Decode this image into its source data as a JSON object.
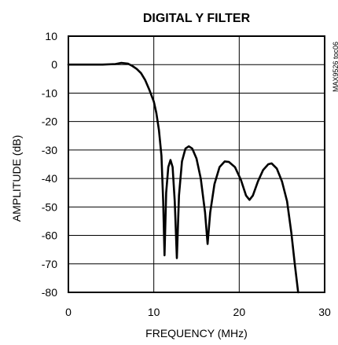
{
  "chart_data": {
    "type": "line",
    "title": "DIGITAL Y FILTER",
    "xlabel": "FREQUENCY (MHz)",
    "ylabel": "AMPLITUDE (dB)",
    "side_note": "MAX9526 toc06",
    "xlim": [
      0,
      30
    ],
    "ylim": [
      -80,
      10
    ],
    "x_ticks": [
      0,
      10,
      20,
      30
    ],
    "y_ticks": [
      10,
      0,
      -10,
      -20,
      -30,
      -40,
      -50,
      -60,
      -70,
      -80
    ],
    "grid": true,
    "series": [
      {
        "points": [
          [
            0,
            0
          ],
          [
            2,
            0
          ],
          [
            4,
            0
          ],
          [
            5.5,
            0.2
          ],
          [
            6.2,
            0.6
          ],
          [
            7,
            0.3
          ],
          [
            7.5,
            -0.5
          ],
          [
            8,
            -1.5
          ],
          [
            8.5,
            -3
          ],
          [
            9,
            -5.5
          ],
          [
            9.5,
            -9
          ],
          [
            10,
            -13
          ],
          [
            10.3,
            -17
          ],
          [
            10.6,
            -23
          ],
          [
            10.9,
            -32
          ],
          [
            11.1,
            -48
          ],
          [
            11.25,
            -67
          ],
          [
            11.45,
            -45
          ],
          [
            11.7,
            -36
          ],
          [
            11.95,
            -33.5
          ],
          [
            12.2,
            -36
          ],
          [
            12.45,
            -48
          ],
          [
            12.7,
            -68
          ],
          [
            12.95,
            -46
          ],
          [
            13.3,
            -34
          ],
          [
            13.7,
            -29.5
          ],
          [
            14.1,
            -28.7
          ],
          [
            14.5,
            -29.5
          ],
          [
            15,
            -33
          ],
          [
            15.5,
            -40
          ],
          [
            16,
            -52
          ],
          [
            16.3,
            -63
          ],
          [
            16.6,
            -52
          ],
          [
            17.1,
            -42
          ],
          [
            17.7,
            -36
          ],
          [
            18.3,
            -34
          ],
          [
            18.8,
            -34.2
          ],
          [
            19.5,
            -36
          ],
          [
            20.2,
            -40.5
          ],
          [
            20.8,
            -46
          ],
          [
            21.2,
            -47.5
          ],
          [
            21.6,
            -46
          ],
          [
            22.2,
            -41
          ],
          [
            22.8,
            -37
          ],
          [
            23.4,
            -35
          ],
          [
            23.8,
            -34.7
          ],
          [
            24.4,
            -36.5
          ],
          [
            25,
            -41
          ],
          [
            25.6,
            -48
          ],
          [
            26.1,
            -59
          ],
          [
            26.5,
            -70
          ],
          [
            26.9,
            -80
          ]
        ]
      }
    ]
  }
}
